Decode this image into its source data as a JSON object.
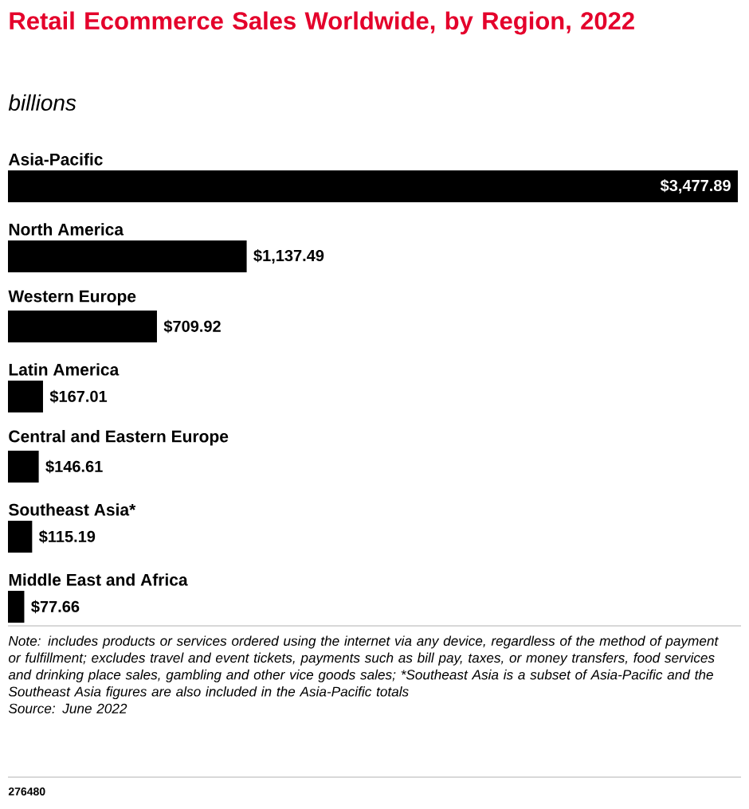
{
  "chart_data": {
    "type": "bar",
    "orientation": "horizontal",
    "title": "Retail Ecommerce Sales Worldwide, by Region, 2022",
    "subtitle": "billions",
    "categories": [
      "Asia-Pacific",
      "North America",
      "Western Europe",
      "Latin America",
      "Central and Eastern Europe",
      "Southeast Asia*",
      "Middle East and Africa"
    ],
    "values": [
      3477.89,
      1137.49,
      709.92,
      167.01,
      146.61,
      115.19,
      77.66
    ],
    "value_labels": [
      "$3,477.89",
      "$1,137.49",
      "$709.92",
      "$167.01",
      "$146.61",
      "$115.19",
      "$77.66"
    ],
    "color": "#000000",
    "annotations": [
      "Note: includes products or services ordered using the internet via any device, regardless of the method of payment or fulfillment; excludes travel and event tickets, payments such as bill pay, taxes, or money transfers, food services and drinking place sales, gambling and other vice goods sales; *Southeast Asia is a subset of Asia-Pacific and the Southeast Asia figures are also included in the Asia-Pacific totals",
      "Source: June 2022",
      "276480"
    ]
  }
}
